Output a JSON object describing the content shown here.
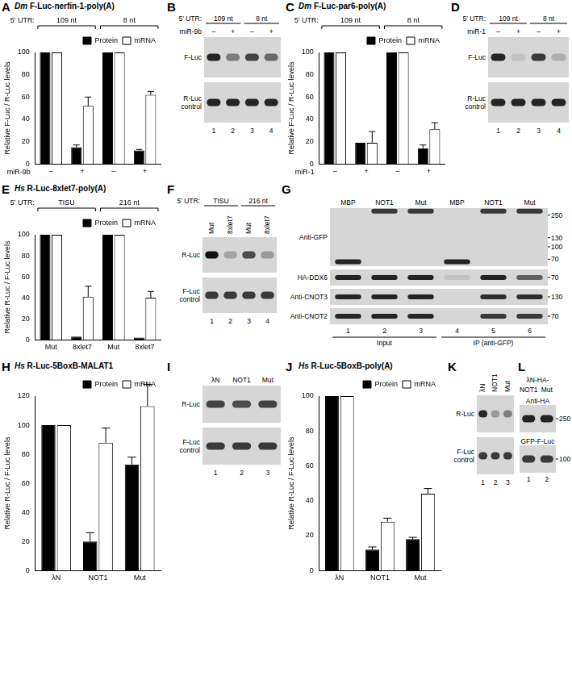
{
  "chart_data": [
    {
      "panel": "A",
      "type": "bar",
      "title": "Dm F-Luc-nerfin-1-poly(A)",
      "group_title": "5' UTR:",
      "groups": [
        {
          "label": "109 nt",
          "categories": [
            0,
            1
          ]
        },
        {
          "label": "8 nt",
          "categories": [
            2,
            3
          ]
        }
      ],
      "x_label": "miR-9b",
      "y_label": "Relative F-Luc / R-Luc levels",
      "categories": [
        "–",
        "+",
        "–",
        "+"
      ],
      "series": [
        {
          "name": "Protein",
          "color": "#000000",
          "values": [
            100,
            15,
            100,
            12
          ],
          "errors": [
            null,
            2,
            null,
            1
          ]
        },
        {
          "name": "mRNA",
          "color": "#ffffff",
          "values": [
            100,
            52,
            100,
            62
          ],
          "errors": [
            null,
            8,
            null,
            3
          ]
        }
      ],
      "ylim": [
        0,
        100
      ],
      "yticks": [
        0,
        20,
        40,
        60,
        80,
        100
      ],
      "grid": false,
      "legend": "top"
    },
    {
      "panel": "C",
      "type": "bar",
      "title": "Dm F-Luc-par6-poly(A)",
      "group_title": "5' UTR:",
      "groups": [
        {
          "label": "109 nt",
          "categories": [
            0,
            1
          ]
        },
        {
          "label": "8 nt",
          "categories": [
            2,
            3
          ]
        }
      ],
      "x_label": "miR-1",
      "y_label": "Relative F-Luc / R-Luc levels",
      "categories": [
        "–",
        "+",
        "–",
        "+"
      ],
      "series": [
        {
          "name": "Protein",
          "color": "#000000",
          "values": [
            100,
            19,
            100,
            14
          ],
          "errors": [
            null,
            null,
            null,
            3
          ]
        },
        {
          "name": "mRNA",
          "color": "#ffffff",
          "values": [
            100,
            19,
            100,
            31
          ],
          "errors": [
            null,
            10,
            null,
            6
          ]
        }
      ],
      "ylim": [
        0,
        100
      ],
      "yticks": [
        0,
        20,
        40,
        60,
        80,
        100
      ],
      "grid": false,
      "legend": "top"
    },
    {
      "panel": "E",
      "type": "bar",
      "title": "Hs R-Luc-8xlet7-poly(A)",
      "group_title": "5' UTR:",
      "groups": [
        {
          "label": "TISU",
          "categories": [
            0,
            1
          ]
        },
        {
          "label": "216 nt",
          "categories": [
            2,
            3
          ]
        }
      ],
      "y_label": "Relative R-Luc / F-Luc levels",
      "categories": [
        "Mut",
        "8xlet7",
        "Mut",
        "8xlet7"
      ],
      "series": [
        {
          "name": "Protein",
          "color": "#000000",
          "values": [
            100,
            3,
            100,
            2
          ],
          "errors": [
            null,
            null,
            null,
            null
          ]
        },
        {
          "name": "mRNA",
          "color": "#ffffff",
          "values": [
            100,
            41,
            100,
            40
          ],
          "errors": [
            null,
            10,
            null,
            6
          ]
        }
      ],
      "ylim": [
        0,
        100
      ],
      "yticks": [
        0,
        20,
        40,
        60,
        80,
        100
      ],
      "grid": false,
      "legend": "top"
    },
    {
      "panel": "H",
      "type": "bar",
      "title": "Hs R-Luc-5BoxB-MALAT1",
      "y_label": "Relative R-Luc / F-Luc levels",
      "categories": [
        "λN",
        "NOT1",
        "Mut"
      ],
      "series": [
        {
          "name": "Protein",
          "color": "#000000",
          "values": [
            100,
            20,
            73
          ],
          "errors": [
            null,
            6,
            5
          ]
        },
        {
          "name": "mRNA",
          "color": "#ffffff",
          "values": [
            100,
            88,
            113
          ],
          "errors": [
            null,
            10,
            15
          ]
        }
      ],
      "ylim": [
        0,
        120
      ],
      "yticks": [
        0,
        20,
        40,
        60,
        80,
        100,
        120
      ],
      "grid": false,
      "legend": "top"
    },
    {
      "panel": "J",
      "type": "bar",
      "title": "Hs R-Luc-5BoxB-poly(A)",
      "y_label": "Relative R-Luc / F-Luc levels",
      "categories": [
        "λN",
        "NOT1",
        "Mut"
      ],
      "series": [
        {
          "name": "Protein",
          "color": "#000000",
          "values": [
            100,
            12,
            18
          ],
          "errors": [
            null,
            1.5,
            1
          ]
        },
        {
          "name": "mRNA",
          "color": "#ffffff",
          "values": [
            100,
            28,
            44
          ],
          "errors": [
            null,
            2,
            3
          ]
        }
      ],
      "ylim": [
        0,
        100
      ],
      "yticks": [
        0,
        20,
        40,
        60,
        80,
        100
      ],
      "grid": false,
      "legend": "top"
    }
  ],
  "blots": [
    {
      "panel": "B",
      "group_title": "5' UTR:",
      "groups": [
        {
          "label": "109 nt",
          "lanes": [
            0,
            1
          ]
        },
        {
          "label": "8 nt",
          "lanes": [
            2,
            3
          ]
        }
      ],
      "condition_label": "miR-9b",
      "conditions": [
        "–",
        "+",
        "–",
        "+"
      ],
      "rows": [
        {
          "label": "F-Luc",
          "bands": [
            0.9,
            0.45,
            0.75,
            0.55
          ]
        },
        {
          "label": "R-Luc control",
          "bands": [
            0.9,
            0.9,
            0.9,
            0.9
          ]
        }
      ],
      "lane_numbers": [
        1,
        2,
        3,
        4
      ]
    },
    {
      "panel": "D",
      "group_title": "5' UTR:",
      "groups": [
        {
          "label": "109 nt",
          "lanes": [
            0,
            1
          ]
        },
        {
          "label": "8 nt",
          "lanes": [
            2,
            3
          ]
        }
      ],
      "condition_label": "miR-1",
      "conditions": [
        "–",
        "+",
        "–",
        "+"
      ],
      "rows": [
        {
          "label": "F-Luc",
          "bands": [
            0.9,
            0.1,
            0.8,
            0.2
          ]
        },
        {
          "label": "R-Luc control",
          "bands": [
            0.9,
            0.9,
            0.9,
            0.9
          ]
        }
      ],
      "lane_numbers": [
        1,
        2,
        3,
        4
      ]
    },
    {
      "panel": "F",
      "group_title": "5' UTR:",
      "groups": [
        {
          "label": "TISU",
          "lanes": [
            0,
            1
          ]
        },
        {
          "label": "216 nt",
          "lanes": [
            2,
            3
          ]
        }
      ],
      "conditions": [
        "Mut",
        "8xlet7",
        "Mut",
        "8xlet7"
      ],
      "rows": [
        {
          "label": "R-Luc",
          "bands": [
            1,
            0.25,
            0.7,
            0.3
          ]
        },
        {
          "label": "F-Luc control",
          "bands": [
            0.8,
            0.8,
            0.8,
            0.8
          ]
        }
      ],
      "lane_numbers": [
        1,
        2,
        3,
        4
      ]
    },
    {
      "panel": "G",
      "conditions": [
        "MBP",
        "NOT1",
        "Mut",
        "MBP",
        "NOT1",
        "Mut"
      ],
      "groups": [
        {
          "label": "Input",
          "lanes": [
            0,
            2
          ]
        },
        {
          "label": "IP (anti-GFP)",
          "lanes": [
            3,
            5
          ]
        }
      ],
      "rows": [
        {
          "label": "Anti-GFP",
          "bands": [
            0.9,
            0.8,
            0.8,
            0.9,
            0.8,
            0.8
          ],
          "band_kda": [
            65,
            280,
            280,
            65,
            280,
            280
          ],
          "markers": [
            250,
            130,
            100,
            70
          ]
        },
        {
          "label": "HA-DDX6",
          "bands": [
            0.9,
            0.9,
            0.9,
            0.1,
            0.9,
            0.6
          ],
          "markers": [
            70
          ]
        },
        {
          "label": "Anti-CNOT3",
          "bands": [
            0.9,
            0.9,
            0.9,
            0,
            0.85,
            0.85
          ],
          "markers": [
            130
          ]
        },
        {
          "label": "Anti-CNOT2",
          "bands": [
            0.9,
            0.9,
            0.9,
            0,
            0.8,
            0.8
          ],
          "markers": [
            70
          ]
        }
      ],
      "lane_numbers": [
        1,
        2,
        3,
        4,
        5,
        6
      ]
    },
    {
      "panel": "I",
      "conditions": [
        "λN",
        "NOT1",
        "Mut"
      ],
      "rows": [
        {
          "label": "R-Luc",
          "bands": [
            0.75,
            0.7,
            0.75
          ]
        },
        {
          "label": "F-Luc control",
          "bands": [
            0.8,
            0.8,
            0.8
          ]
        }
      ],
      "lane_numbers": [
        1,
        2,
        3
      ]
    },
    {
      "panel": "K",
      "conditions": [
        "λN",
        "NOT1",
        "Mut"
      ],
      "rows": [
        {
          "label": "R-Luc",
          "bands": [
            0.9,
            0.3,
            0.45
          ]
        },
        {
          "label": "F-Luc control",
          "bands": [
            0.8,
            0.8,
            0.8
          ]
        }
      ],
      "lane_numbers": [
        1,
        2,
        3
      ]
    },
    {
      "panel": "L",
      "condition_label": "λN-HA-",
      "conditions": [
        "NOT1",
        "Mut"
      ],
      "rows": [
        {
          "label": "Anti-HA",
          "bands": [
            0.9,
            0.9
          ],
          "markers": [
            250
          ]
        },
        {
          "label": "GFP-F-Luc",
          "bands": [
            0.8,
            0.8
          ],
          "markers": [
            100
          ]
        }
      ],
      "lane_numbers": [
        1,
        2
      ]
    }
  ]
}
